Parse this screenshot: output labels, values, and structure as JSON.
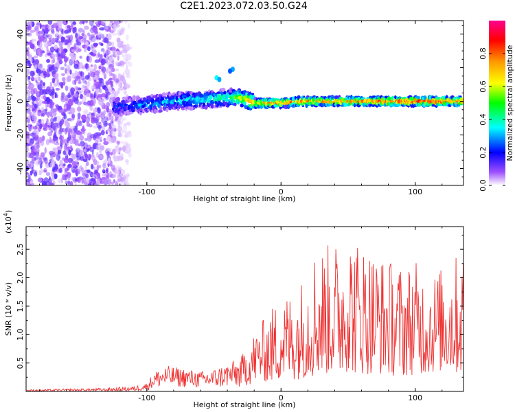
{
  "title": "C2E1.2023.072.03.50.G24",
  "colormap": {
    "stops": [
      "#ffffff",
      "#a050ff",
      "#0000ff",
      "#00ffff",
      "#00ff00",
      "#ffff00",
      "#ff9900",
      "#ff0000",
      "#ff0090"
    ],
    "trace_color": "#ee3333"
  },
  "chart_data": [
    {
      "type": "heatmap",
      "title": "C2E1.2023.072.03.50.G24",
      "xlabel": "Height of straight line (km)",
      "ylabel": "Frequency (Hz)",
      "xlim": [
        -190,
        136
      ],
      "ylim": [
        -50,
        48
      ],
      "xticks": [
        -100,
        0,
        100
      ],
      "xtick_labels": [
        "-100",
        "0",
        "100"
      ],
      "yticks": [
        -40,
        -20,
        0,
        20,
        40
      ],
      "ytick_labels": [
        "-40",
        "-20",
        "0",
        "20",
        "40"
      ],
      "colorbar": {
        "label": "Normalized spectral amplitude",
        "range": [
          0.0,
          1.0
        ],
        "ticks": [
          0.0,
          0.2,
          0.4,
          0.6,
          0.8
        ],
        "tick_labels": [
          "0.0",
          "0.2",
          "0.4",
          "0.6",
          "0.8"
        ]
      },
      "ridge": {
        "description_free": true,
        "x": [
          -120,
          -100,
          -80,
          -60,
          -40,
          -30,
          -20,
          0,
          20,
          50,
          100,
          136
        ],
        "frequency": [
          -3,
          -2,
          0,
          1,
          2,
          2,
          -1,
          -1,
          0,
          0,
          0,
          0
        ],
        "amplitude": [
          0.3,
          0.35,
          0.4,
          0.45,
          0.5,
          0.7,
          0.8,
          0.85,
          0.85,
          0.85,
          0.95,
          0.9
        ]
      },
      "noise_region_x": [
        -190,
        -110
      ]
    },
    {
      "type": "line",
      "xlabel": "Height of straight line (km)",
      "ylabel": "SNR (10 * v/v)",
      "scale_label": "(x10",
      "scale_exp": "4",
      "scale_close": ")",
      "xlim": [
        -190,
        136
      ],
      "ylim": [
        0,
        29000
      ],
      "xticks": [
        -100,
        0,
        100
      ],
      "xtick_labels": [
        "-100",
        "0",
        "100"
      ],
      "yticks": [
        5000,
        10000,
        15000,
        20000,
        25000
      ],
      "ytick_labels": [
        "0.5",
        "1.0",
        "1.5",
        "2.0",
        "2.5"
      ],
      "series": [
        {
          "color": "#ee3333",
          "envelope_x": [
            -190,
            -130,
            -110,
            -100,
            -95,
            -85,
            -70,
            -60,
            -50,
            -40,
            -30,
            -20,
            -15,
            -10,
            0,
            10,
            20,
            25,
            35,
            45,
            50,
            55,
            65,
            75,
            90,
            100,
            110,
            120,
            130,
            136
          ],
          "envelope_min": [
            0,
            0,
            0,
            200,
            500,
            800,
            700,
            600,
            500,
            700,
            500,
            1500,
            2000,
            1500,
            2000,
            2000,
            2500,
            2500,
            3000,
            3000,
            3500,
            3000,
            3000,
            3000,
            2500,
            3000,
            3000,
            3500,
            3000,
            3000
          ],
          "envelope_max": [
            300,
            600,
            900,
            1500,
            3500,
            4500,
            4000,
            3500,
            4000,
            5000,
            6000,
            10500,
            12000,
            14000,
            17000,
            18000,
            22000,
            25500,
            26000,
            27000,
            29000,
            27500,
            26000,
            24000,
            22500,
            23000,
            21000,
            22000,
            24000,
            25500
          ]
        }
      ]
    }
  ]
}
